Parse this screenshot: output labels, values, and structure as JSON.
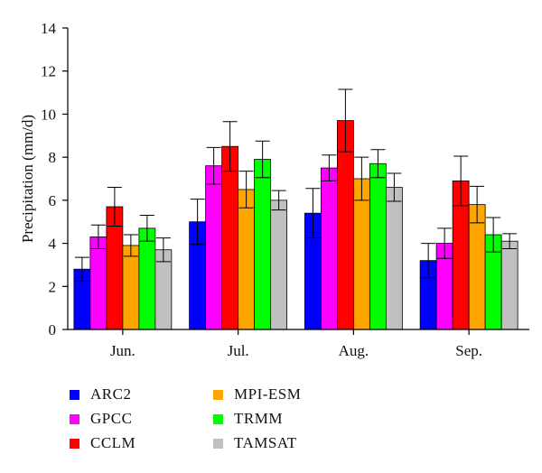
{
  "chart_data": {
    "type": "bar",
    "title": "",
    "xlabel": "",
    "ylabel": "Precipitation (mm/d)",
    "ylim": [
      0,
      14
    ],
    "yticks": [
      "0",
      "2",
      "4",
      "6",
      "8",
      "10",
      "12",
      "14"
    ],
    "categories": [
      "Jun.",
      "Jul.",
      "Aug.",
      "Sep."
    ],
    "grid": false,
    "legend_placement": "bottom-left",
    "series": [
      {
        "name": "ARC2",
        "color": "#0000ff",
        "values": [
          2.8,
          5.0,
          5.4,
          3.2
        ],
        "error": [
          0.55,
          1.05,
          1.15,
          0.8
        ]
      },
      {
        "name": "GPCC",
        "color": "#ff00ff",
        "values": [
          4.3,
          7.6,
          7.5,
          4.0
        ],
        "error": [
          0.55,
          0.85,
          0.6,
          0.7
        ]
      },
      {
        "name": "CCLM",
        "color": "#ff0000",
        "values": [
          5.7,
          8.5,
          9.7,
          6.9
        ],
        "error": [
          0.9,
          1.15,
          1.45,
          1.15
        ]
      },
      {
        "name": "MPI-ESM",
        "color": "#ffa500",
        "values": [
          3.9,
          6.5,
          7.0,
          5.8
        ],
        "error": [
          0.5,
          0.85,
          1.0,
          0.85
        ]
      },
      {
        "name": "TRMM",
        "color": "#00ff00",
        "values": [
          4.7,
          7.9,
          7.7,
          4.4
        ],
        "error": [
          0.6,
          0.85,
          0.65,
          0.8
        ]
      },
      {
        "name": "TAMSAT",
        "color": "#c0c0c0",
        "values": [
          3.7,
          6.0,
          6.6,
          4.1
        ],
        "error": [
          0.55,
          0.45,
          0.65,
          0.35
        ]
      }
    ]
  }
}
